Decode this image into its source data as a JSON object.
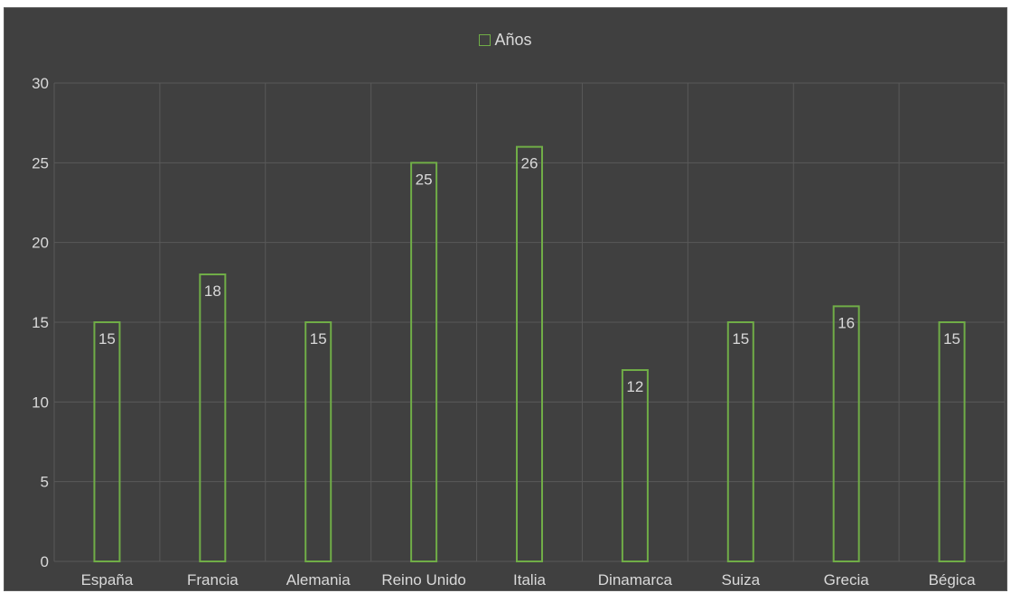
{
  "chart_data": {
    "type": "bar",
    "title": "",
    "xlabel": "",
    "ylabel": "",
    "categories": [
      "España",
      "Francia",
      "Alemania",
      "Reino Unido",
      "Italia",
      "Dinamarca",
      "Suiza",
      "Grecia",
      "Bégica"
    ],
    "series": [
      {
        "name": "Años",
        "values": [
          15,
          18,
          15,
          25,
          26,
          12,
          15,
          16,
          15
        ]
      }
    ],
    "ylim": [
      0,
      30
    ],
    "yticks": [
      0,
      5,
      10,
      15,
      20,
      25,
      30
    ],
    "grid": true,
    "legend_position": "top-center",
    "data_labels": true,
    "colors": {
      "background": "#404040",
      "bar_outline": "#70ad47",
      "grid": "#595959",
      "text": "#d9d9d9"
    }
  }
}
